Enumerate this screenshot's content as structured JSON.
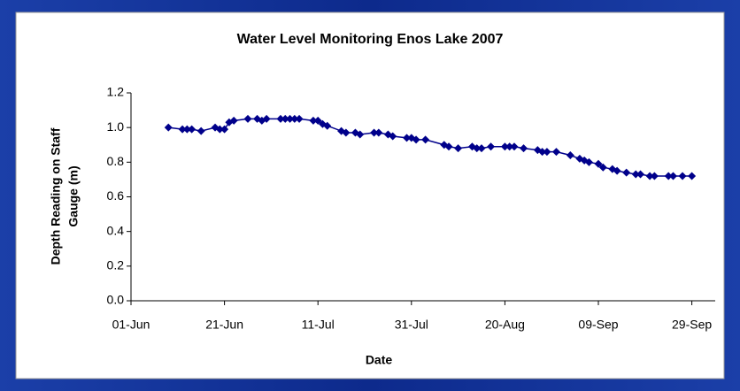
{
  "chart_data": {
    "type": "line",
    "title": "Water Level Monitoring Enos Lake 2007",
    "xlabel": "Date",
    "ylabel": [
      "Depth Reading on Staff",
      "Gauge (m)"
    ],
    "color": "#00008b",
    "xlim": [
      "01-Jun",
      "04-Oct"
    ],
    "xticks": [
      "01-Jun",
      "21-Jun",
      "11-Jul",
      "31-Jul",
      "20-Aug",
      "09-Sep",
      "29-Sep"
    ],
    "ylim": [
      0,
      1.2
    ],
    "yticks": [
      {
        "value": 0,
        "label": "0.0"
      },
      0.2,
      0.4,
      0.6,
      0.8,
      {
        "value": 1,
        "label": "1.0"
      },
      1.2
    ],
    "grid": false,
    "x": [
      "09-Jun",
      "12-Jun",
      "13-Jun",
      "14-Jun",
      "16-Jun",
      "19-Jun",
      "20-Jun",
      "21-Jun",
      "22-Jun",
      "23-Jun",
      "26-Jun",
      "28-Jun",
      "29-Jun",
      "30-Jun",
      "03-Jul",
      "04-Jul",
      "05-Jul",
      "06-Jul",
      "07-Jul",
      "10-Jul",
      "11-Jul",
      "12-Jul",
      "13-Jul",
      "16-Jul",
      "17-Jul",
      "19-Jul",
      "20-Jul",
      "23-Jul",
      "24-Jul",
      "26-Jul",
      "27-Jul",
      "30-Jul",
      "31-Jul",
      "01-Aug",
      "03-Aug",
      "07-Aug",
      "08-Aug",
      "10-Aug",
      "13-Aug",
      "14-Aug",
      "15-Aug",
      "17-Aug",
      "20-Aug",
      "21-Aug",
      "22-Aug",
      "24-Aug",
      "27-Aug",
      "28-Aug",
      "29-Aug",
      "31-Aug",
      "03-Sep",
      "05-Sep",
      "06-Sep",
      "07-Sep",
      "09-Sep",
      "10-Sep",
      "12-Sep",
      "13-Sep",
      "15-Sep",
      "17-Sep",
      "18-Sep",
      "20-Sep",
      "21-Sep",
      "24-Sep",
      "25-Sep",
      "27-Sep",
      "29-Sep"
    ],
    "values": [
      1.0,
      0.99,
      0.99,
      0.99,
      0.98,
      1.0,
      0.99,
      0.99,
      1.03,
      1.04,
      1.05,
      1.05,
      1.04,
      1.05,
      1.05,
      1.05,
      1.05,
      1.05,
      1.05,
      1.04,
      1.04,
      1.02,
      1.01,
      0.98,
      0.97,
      0.97,
      0.96,
      0.97,
      0.97,
      0.96,
      0.95,
      0.94,
      0.94,
      0.93,
      0.93,
      0.9,
      0.89,
      0.88,
      0.89,
      0.88,
      0.88,
      0.89,
      0.89,
      0.89,
      0.89,
      0.88,
      0.87,
      0.86,
      0.86,
      0.86,
      0.84,
      0.82,
      0.81,
      0.8,
      0.79,
      0.77,
      0.76,
      0.75,
      0.74,
      0.73,
      0.73,
      0.72,
      0.72,
      0.72,
      0.72,
      0.72,
      0.72
    ]
  }
}
